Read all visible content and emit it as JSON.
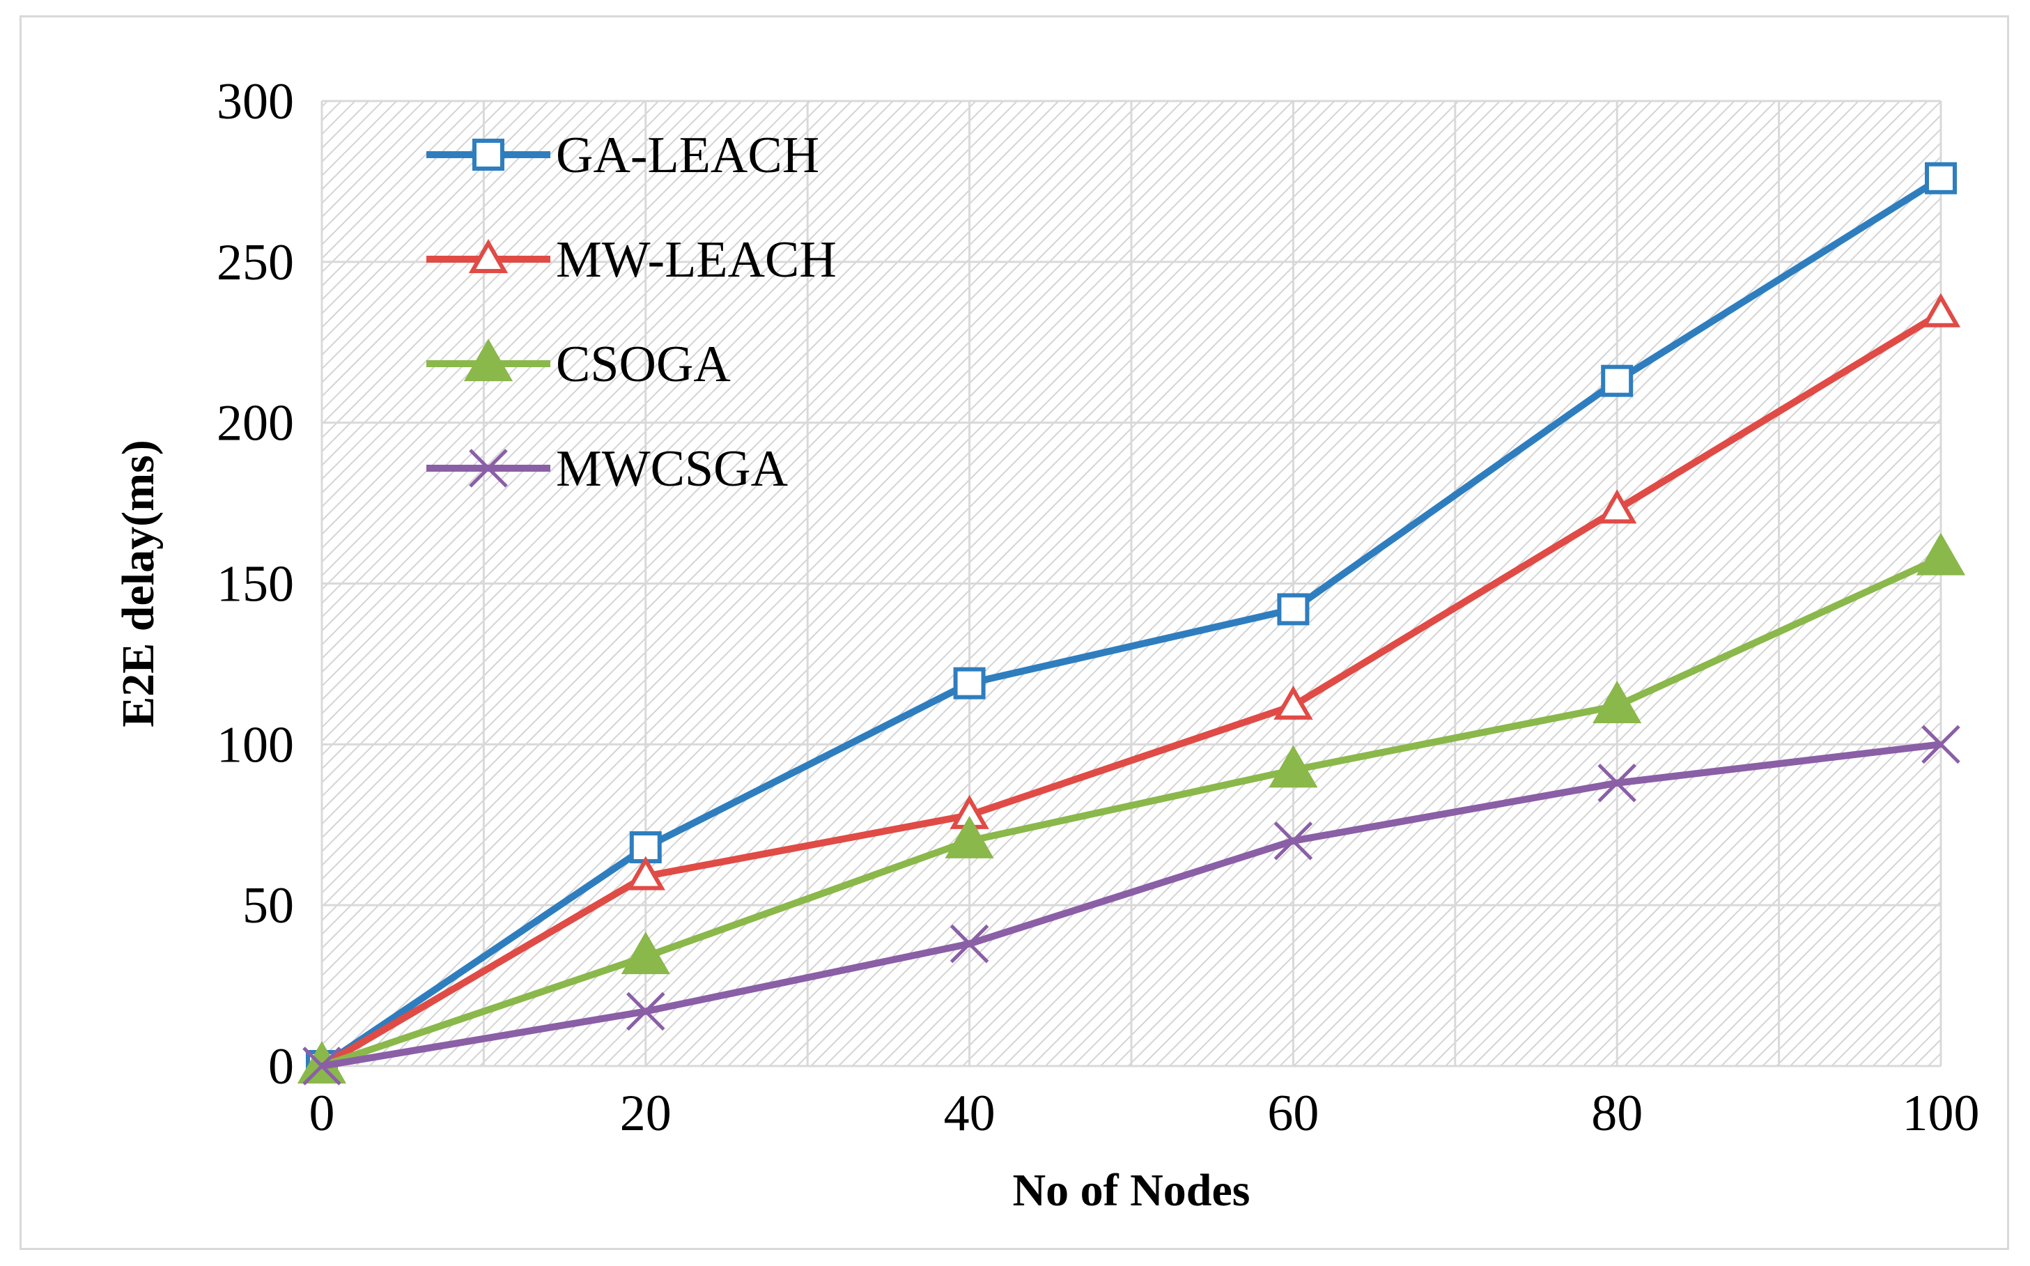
{
  "chart_data": {
    "type": "line",
    "title": "",
    "xlabel": "No of Nodes",
    "ylabel": "E2E delay(ms)",
    "x": [
      0,
      20,
      40,
      60,
      80,
      100
    ],
    "xlim": [
      0,
      100
    ],
    "ylim": [
      0,
      300
    ],
    "xticks": [
      0,
      20,
      40,
      60,
      80,
      100
    ],
    "yticks": [
      0,
      50,
      100,
      150,
      200,
      250,
      300
    ],
    "grid": true,
    "legend_position": "top-left",
    "series": [
      {
        "name": "GA-LEACH",
        "color": "#2e7ebf",
        "marker": "square",
        "values": [
          0,
          68,
          119,
          142,
          213,
          276
        ]
      },
      {
        "name": "MW-LEACH",
        "color": "#e04b46",
        "marker": "triangle-open",
        "values": [
          0,
          59,
          78,
          112,
          173,
          234
        ]
      },
      {
        "name": "CSOGA",
        "color": "#8ab84a",
        "marker": "triangle-filled",
        "values": [
          0,
          34,
          70,
          92,
          112,
          158
        ]
      },
      {
        "name": "MWCSGA",
        "color": "#8a5fa6",
        "marker": "x",
        "values": [
          0,
          17,
          38,
          70,
          88,
          100
        ]
      }
    ]
  }
}
